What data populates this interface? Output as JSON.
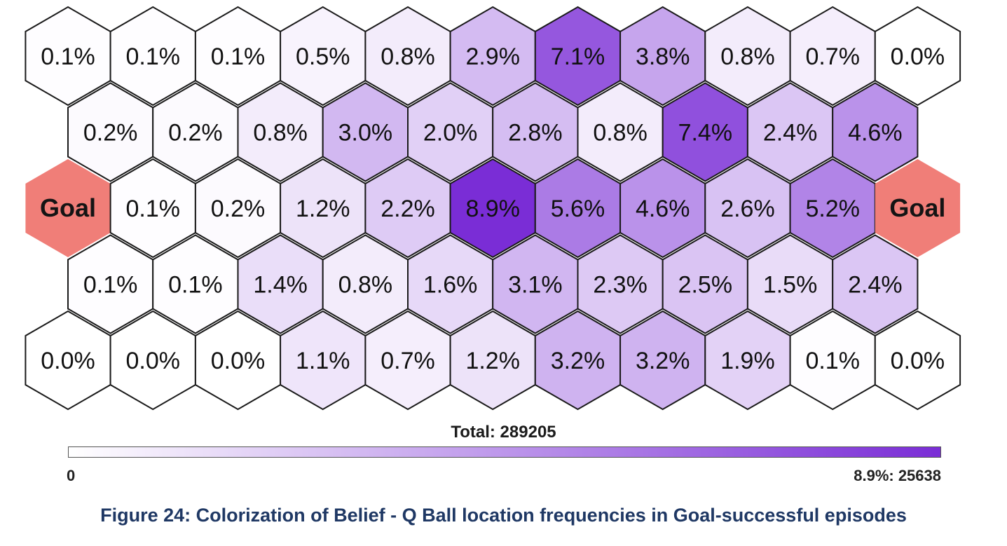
{
  "chart_data": {
    "type": "heatmap",
    "subtitle": "Total: 289205",
    "rows": [
      [
        "0.1%",
        "0.1%",
        "0.1%",
        "0.5%",
        "0.8%",
        "2.9%",
        "7.1%",
        "3.8%",
        "0.8%",
        "0.7%",
        "0.0%"
      ],
      [
        "0.2%",
        "0.2%",
        "0.8%",
        "3.0%",
        "2.0%",
        "2.8%",
        "0.8%",
        "7.4%",
        "2.4%",
        "4.6%"
      ],
      [
        "Goal",
        "0.1%",
        "0.2%",
        "1.2%",
        "2.2%",
        "8.9%",
        "5.6%",
        "4.6%",
        "2.6%",
        "5.2%",
        "Goal"
      ],
      [
        "0.1%",
        "0.1%",
        "1.4%",
        "0.8%",
        "1.6%",
        "3.1%",
        "2.3%",
        "2.5%",
        "1.5%",
        "2.4%"
      ],
      [
        "0.0%",
        "0.0%",
        "0.0%",
        "1.1%",
        "0.7%",
        "1.2%",
        "3.2%",
        "3.2%",
        "1.9%",
        "0.1%",
        "0.0%"
      ]
    ],
    "colorbar": {
      "min_label": "0",
      "max_label": "8.9%: 25638",
      "min_value": 0,
      "max_value": 8.9
    },
    "colors": {
      "low": "#ffffff",
      "high": "#7a2dd6",
      "goal": "#f07e78",
      "border": "#1a1a1a"
    }
  },
  "caption": "Figure 24: Colorization of Belief - Q Ball location frequencies in Goal-successful episodes"
}
